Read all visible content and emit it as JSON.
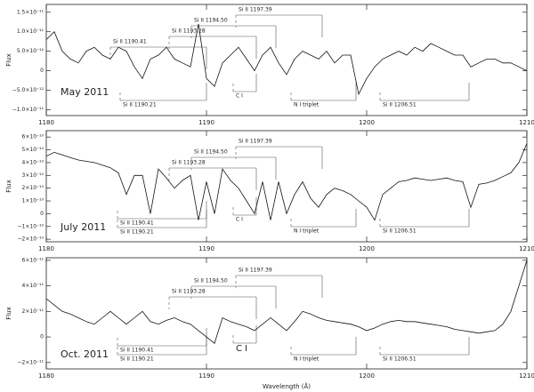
{
  "chart_data": [
    {
      "type": "line",
      "title": "May 2011",
      "ylabel": "Flux",
      "color": "#111",
      "x": [
        1180,
        1180.5,
        1181,
        1181.5,
        1182,
        1182.5,
        1183,
        1183.5,
        1184,
        1184.5,
        1185,
        1185.5,
        1186,
        1186.5,
        1187,
        1187.5,
        1188,
        1188.5,
        1189,
        1189.5,
        1190,
        1190.5,
        1191,
        1191.5,
        1192,
        1192.5,
        1193,
        1193.5,
        1194,
        1194.5,
        1195,
        1195.5,
        1196,
        1196.5,
        1197,
        1197.5,
        1198,
        1198.5,
        1199,
        1199.5,
        1200,
        1200.5,
        1201,
        1201.5,
        1202,
        1202.5,
        1203,
        1203.5,
        1204,
        1204.5,
        1205,
        1205.5,
        1206,
        1206.5,
        1207,
        1207.5,
        1208,
        1208.5,
        1209,
        1209.5,
        1210
      ],
      "values": [
        8e-12,
        1e-11,
        5e-12,
        3e-12,
        2e-12,
        5e-12,
        6e-12,
        4e-12,
        3e-12,
        6e-12,
        5e-12,
        1e-12,
        -2e-12,
        3e-12,
        4e-12,
        6e-12,
        3e-12,
        2e-12,
        1e-12,
        1.2e-11,
        -2e-12,
        -4e-12,
        2e-12,
        4e-12,
        6e-12,
        3e-12,
        0,
        4e-12,
        6e-12,
        2e-12,
        -1e-12,
        3e-12,
        5e-12,
        4e-12,
        3e-12,
        5e-12,
        2e-12,
        4e-12,
        4e-12,
        -6e-12,
        -2e-12,
        1e-12,
        3e-12,
        4e-12,
        5e-12,
        4e-12,
        6e-12,
        5e-12,
        7e-12,
        6e-12,
        5e-12,
        4e-12,
        4e-12,
        1e-12,
        2e-12,
        3e-12,
        3e-12,
        2e-12,
        2e-12,
        1e-12,
        0
      ],
      "xlim": [
        1180,
        1210
      ],
      "xticks": [
        1180,
        1190,
        1200,
        1210
      ],
      "ylim": [
        -1.15e-11,
        1.7e-11
      ],
      "yticks": [
        {
          "value": -1e-11,
          "label": "−1.0×10⁻¹¹"
        },
        {
          "value": -5e-12,
          "label": "−5.0×10⁻¹²"
        },
        0,
        {
          "value": 5e-12,
          "label": "5.0×10⁻¹²"
        },
        {
          "value": 1e-11,
          "label": "1.0×10⁻¹¹"
        },
        {
          "value": 1.5e-11,
          "label": "1.5×10⁻¹¹"
        }
      ],
      "annotations": [
        "Si II 1197.39",
        "Si II 1194.50",
        "Si II 1193.28",
        "Si II 1190.41",
        "Si II 1190.21",
        "C I",
        "N I triplet",
        "Si II 1206.51"
      ]
    },
    {
      "type": "line",
      "title": "July 2011",
      "ylabel": "Flux",
      "color": "#111",
      "x": [
        1180,
        1180.5,
        1181,
        1181.5,
        1182,
        1182.5,
        1183,
        1183.5,
        1184,
        1184.5,
        1185,
        1185.5,
        1186,
        1186.5,
        1187,
        1187.5,
        1188,
        1188.5,
        1189,
        1189.5,
        1190,
        1190.5,
        1191,
        1191.5,
        1192,
        1192.5,
        1193,
        1193.5,
        1194,
        1194.5,
        1195,
        1195.5,
        1196,
        1196.5,
        1197,
        1197.5,
        1198,
        1198.5,
        1199,
        1199.5,
        1200,
        1200.5,
        1201,
        1201.5,
        1202,
        1202.5,
        1203,
        1203.5,
        1204,
        1204.5,
        1205,
        1205.5,
        1206,
        1206.5,
        1207,
        1207.5,
        1208,
        1208.5,
        1209,
        1209.5,
        1210
      ],
      "values": [
        4.5e-10,
        4.8e-10,
        4.6e-10,
        4.4e-10,
        4.2e-10,
        4.1e-10,
        4e-10,
        3.8e-10,
        3.6e-10,
        3.2e-10,
        1.5e-10,
        3e-10,
        3e-10,
        0,
        3.5e-10,
        2.8e-10,
        2e-10,
        2.6e-10,
        3e-10,
        -5e-11,
        2.5e-10,
        0,
        3.5e-10,
        2.6e-10,
        2e-10,
        1e-10,
        0,
        2.5e-10,
        -5e-11,
        2.5e-10,
        0,
        1.5e-10,
        2.5e-10,
        1.2e-10,
        5e-11,
        1.5e-10,
        2e-10,
        1.8e-10,
        1.5e-10,
        1e-10,
        5e-11,
        -5e-11,
        1.5e-10,
        2e-10,
        2.5e-10,
        2.6e-10,
        2.8e-10,
        2.7e-10,
        2.6e-10,
        2.7e-10,
        2.8e-10,
        2.6e-10,
        2.5e-10,
        5e-11,
        2.3e-10,
        2.4e-10,
        2.6e-10,
        2.9e-10,
        3.2e-10,
        4e-10,
        5.5e-10
      ],
      "xlim": [
        1180,
        1210
      ],
      "xticks": [
        1180,
        1190,
        1200,
        1210
      ],
      "ylim": [
        -2.2e-10,
        6.5e-10
      ],
      "yticks": [
        {
          "value": -2e-10,
          "label": "−2×10⁻¹⁰"
        },
        {
          "value": -1e-10,
          "label": "−1×10⁻¹⁰"
        },
        0,
        {
          "value": 1e-10,
          "label": "1×10⁻¹⁰"
        },
        {
          "value": 2e-10,
          "label": "2×10⁻¹⁰"
        },
        {
          "value": 3e-10,
          "label": "3×10⁻¹⁰"
        },
        {
          "value": 4e-10,
          "label": "4×10⁻¹⁰"
        },
        {
          "value": 5e-10,
          "label": "5×10⁻¹⁰"
        },
        {
          "value": 6e-10,
          "label": "6×10⁻¹⁰"
        }
      ],
      "annotations": [
        "Si II 1197.39",
        "Si II 1194.50",
        "Si II 1193.28",
        "Si II 1190.41",
        "Si II 1190.21",
        "C I",
        "N I triplet",
        "Si II 1206.51"
      ]
    },
    {
      "type": "line",
      "title": "Oct. 2011",
      "ylabel": "Flux",
      "xlabel": "Wavelength (Å)",
      "color": "#111",
      "x": [
        1180,
        1180.5,
        1181,
        1181.5,
        1182,
        1182.5,
        1183,
        1183.5,
        1184,
        1184.5,
        1185,
        1185.5,
        1186,
        1186.5,
        1187,
        1187.5,
        1188,
        1188.5,
        1189,
        1189.5,
        1190,
        1190.5,
        1191,
        1191.5,
        1192,
        1192.5,
        1193,
        1193.5,
        1194,
        1194.5,
        1195,
        1195.5,
        1196,
        1196.5,
        1197,
        1197.5,
        1198,
        1198.5,
        1199,
        1199.5,
        1200,
        1200.5,
        1201,
        1201.5,
        1202,
        1202.5,
        1203,
        1203.5,
        1204,
        1204.5,
        1205,
        1205.5,
        1206,
        1206.5,
        1207,
        1207.5,
        1208,
        1208.5,
        1209,
        1209.5,
        1210
      ],
      "values": [
        3e-11,
        2.5e-11,
        2e-11,
        1.8e-11,
        1.5e-11,
        1.2e-11,
        1e-11,
        1.5e-11,
        2e-11,
        1.5e-11,
        1e-11,
        1.5e-11,
        2e-11,
        1.2e-11,
        1e-11,
        1.3e-11,
        1.5e-11,
        1.2e-11,
        1e-11,
        5e-12,
        0,
        -5e-12,
        1.5e-11,
        1.2e-11,
        1e-11,
        8e-12,
        5e-12,
        1e-11,
        1.5e-11,
        1e-11,
        5e-12,
        1.2e-11,
        2e-11,
        1.8e-11,
        1.5e-11,
        1.3e-11,
        1.2e-11,
        1.1e-11,
        1e-11,
        8e-12,
        5e-12,
        7e-12,
        1e-11,
        1.2e-11,
        1.3e-11,
        1.2e-11,
        1.2e-11,
        1.1e-11,
        1e-11,
        9e-12,
        8e-12,
        6e-12,
        5e-12,
        4e-12,
        3e-12,
        4e-12,
        5e-12,
        1e-11,
        2e-11,
        4e-11,
        6e-11
      ],
      "xlim": [
        1180,
        1210
      ],
      "xticks": [
        1180,
        1190,
        1200,
        1210
      ],
      "ylim": [
        -2.5e-11,
        6.2e-11
      ],
      "yticks": [
        {
          "value": -2e-11,
          "label": "−2×10⁻¹¹"
        },
        0,
        {
          "value": 2e-11,
          "label": "2×10⁻¹¹"
        },
        {
          "value": 4e-11,
          "label": "4×10⁻¹¹"
        },
        {
          "value": 6e-11,
          "label": "6×10⁻¹¹"
        }
      ],
      "annotations": [
        "Si II 1197.39",
        "Si II 1194.50",
        "Si II 1193.28",
        "Si II 1190.41",
        "Si II 1190.21",
        "C I",
        "N I triplet",
        "Si II 1206.51"
      ]
    }
  ]
}
